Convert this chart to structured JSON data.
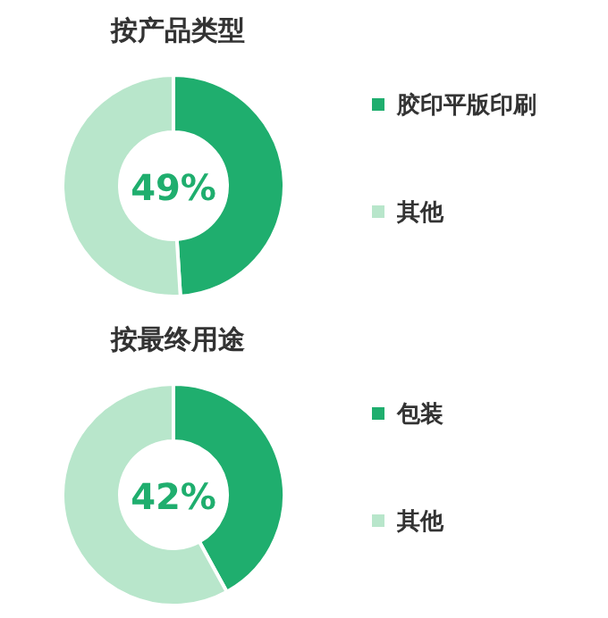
{
  "chart_data": [
    {
      "type": "donut",
      "title": "按产品类型",
      "categories": [
        "胶印平版印刷",
        "其他"
      ],
      "values": [
        49,
        51
      ],
      "colors": [
        "#1fae6e",
        "#b8e6cb"
      ],
      "annotations": [
        "49%"
      ],
      "legend": "right"
    },
    {
      "type": "donut",
      "title": "按最终用途",
      "categories": [
        "包装",
        "其他"
      ],
      "values": [
        42,
        58
      ],
      "colors": [
        "#1fae6e",
        "#b8e6cb"
      ],
      "annotations": [
        "42%"
      ],
      "legend": "right"
    }
  ]
}
